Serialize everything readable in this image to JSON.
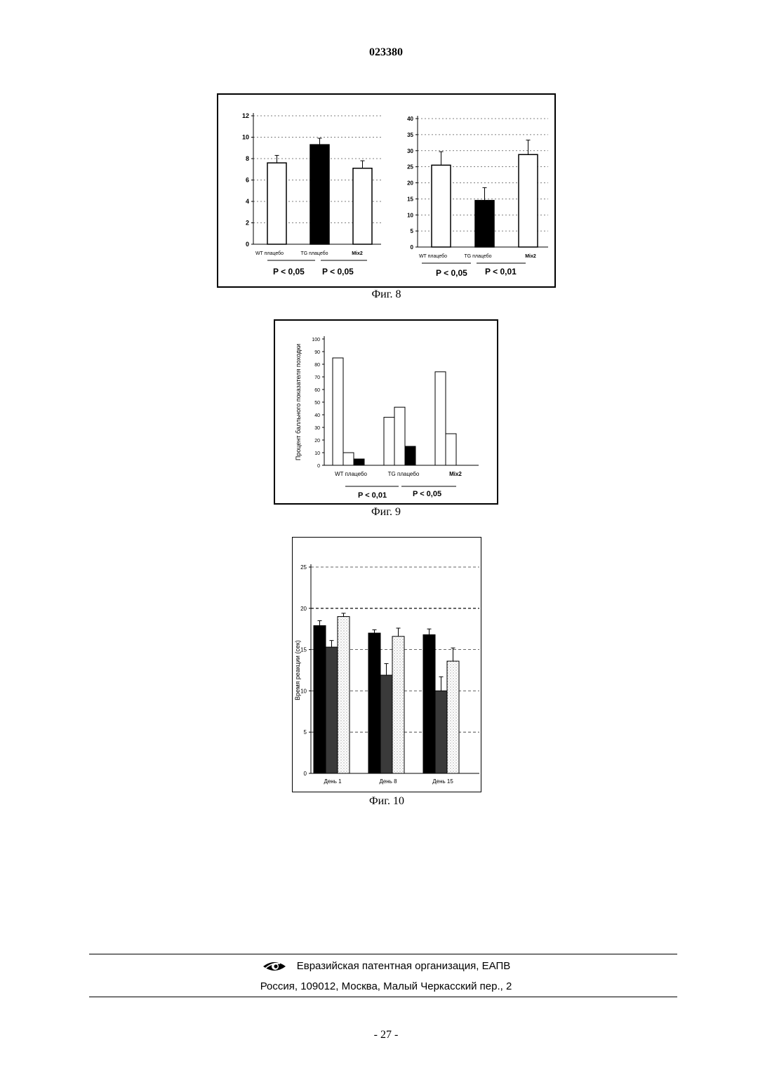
{
  "document_number": "023380",
  "fig8": {
    "caption": "Фиг. 8",
    "left_p_labels": [
      "P < 0,05",
      "P < 0,05"
    ],
    "right_p_labels": [
      "P < 0,05",
      "P < 0,01"
    ]
  },
  "fig9": {
    "caption": "Фиг. 9",
    "p_labels": [
      "P < 0,01",
      "P < 0,05"
    ]
  },
  "fig10": {
    "caption": "Фиг. 10"
  },
  "footer": {
    "organization": "Евразийская патентная организация, ЕАПВ",
    "address": "Россия, 109012, Москва, Малый Черкасский пер., 2"
  },
  "page_number": "- 27 -",
  "chart_data": [
    {
      "id": "fig8-left",
      "type": "bar",
      "categories": [
        "WT плацебо",
        "TG плацебо",
        "Mix2"
      ],
      "values": [
        7.6,
        9.3,
        7.1
      ],
      "errors": [
        0.7,
        0.6,
        0.7
      ],
      "fills": [
        "#ffffff",
        "#000000",
        "#ffffff"
      ],
      "yticks": [
        0,
        2,
        4,
        6,
        8,
        10,
        12
      ],
      "ylim": [
        0,
        12
      ],
      "grid": true
    },
    {
      "id": "fig8-right",
      "type": "bar",
      "categories": [
        "WT плацебо",
        "TG плацебо",
        "Mix2"
      ],
      "values": [
        25.5,
        14.5,
        28.8
      ],
      "errors": [
        4.2,
        4.0,
        4.5
      ],
      "fills": [
        "#ffffff",
        "#000000",
        "#ffffff"
      ],
      "yticks": [
        0,
        5,
        10,
        15,
        20,
        25,
        30,
        35,
        40
      ],
      "ylim": [
        0,
        40
      ],
      "grid": true
    },
    {
      "id": "fig9",
      "type": "bar",
      "ylabel": "Процент балльного показателя походки",
      "categories": [
        "WT плацебо",
        "TG плацебо",
        "Mix2"
      ],
      "series": [
        {
          "fill": "#ffffff",
          "values": [
            85,
            38,
            74
          ]
        },
        {
          "fill": "#ffffff",
          "values": [
            10,
            46,
            25
          ]
        },
        {
          "fill": "#000000",
          "values": [
            5,
            15,
            null
          ]
        }
      ],
      "yticks": [
        0,
        10,
        20,
        30,
        40,
        50,
        60,
        70,
        80,
        90,
        100
      ],
      "ylim": [
        0,
        100
      ],
      "grid": false
    },
    {
      "id": "fig10",
      "type": "bar",
      "ylabel": "Время реакции (сек)",
      "categories": [
        "День 1",
        "День 8",
        "День 15"
      ],
      "series": [
        {
          "fill": "#000000",
          "values": [
            17.9,
            17.0,
            16.8
          ],
          "errors": [
            0.6,
            0.4,
            0.7
          ]
        },
        {
          "fill": "#3a3a3a",
          "values": [
            15.3,
            11.9,
            10.0
          ],
          "errors": [
            0.8,
            1.4,
            1.7
          ]
        },
        {
          "fill": "#ffffff",
          "values": [
            19.0,
            16.6,
            13.6
          ],
          "errors": [
            0.4,
            1.0,
            1.6
          ]
        }
      ],
      "yticks": [
        0,
        5,
        10,
        15,
        20,
        25
      ],
      "ylim": [
        0,
        25
      ],
      "grid": true
    }
  ]
}
